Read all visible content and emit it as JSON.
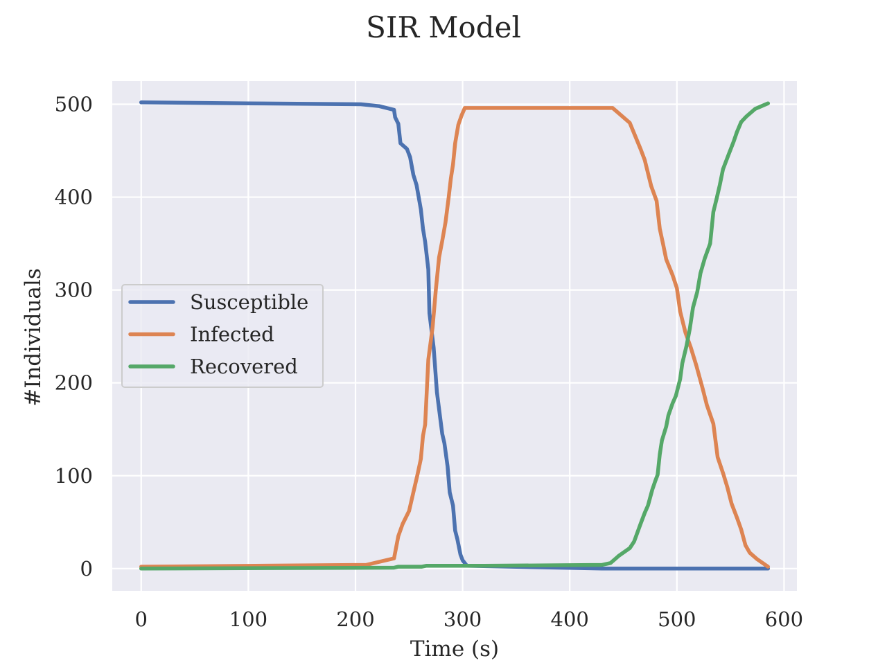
{
  "chart_data": {
    "type": "line",
    "title": "SIR Model",
    "xlabel": "Time (s)",
    "ylabel": "#Individuals",
    "xlim": [
      -27,
      612
    ],
    "ylim": [
      -24,
      525
    ],
    "xticks": [
      0,
      100,
      200,
      300,
      400,
      500,
      600
    ],
    "yticks": [
      0,
      100,
      200,
      300,
      400,
      500
    ],
    "grid": true,
    "legend_position": "center-left",
    "background": "#eaeaf2",
    "series": [
      {
        "name": "Susceptible",
        "color": "#4c72b0",
        "points": [
          [
            0,
            502
          ],
          [
            100,
            501
          ],
          [
            205,
            500
          ],
          [
            222,
            498
          ],
          [
            236,
            494
          ],
          [
            237,
            486
          ],
          [
            240,
            479
          ],
          [
            242,
            458
          ],
          [
            248,
            452
          ],
          [
            251,
            443
          ],
          [
            254,
            424
          ],
          [
            257,
            413
          ],
          [
            261,
            387
          ],
          [
            263,
            366
          ],
          [
            265,
            352
          ],
          [
            268,
            322
          ],
          [
            269,
            275
          ],
          [
            273,
            238
          ],
          [
            276,
            190
          ],
          [
            281,
            145
          ],
          [
            283,
            135
          ],
          [
            286,
            110
          ],
          [
            288,
            82
          ],
          [
            291,
            68
          ],
          [
            293,
            41
          ],
          [
            295,
            32
          ],
          [
            298,
            15
          ],
          [
            300,
            9
          ],
          [
            304,
            3
          ],
          [
            430,
            0
          ],
          [
            585,
            0
          ]
        ]
      },
      {
        "name": "Infected",
        "color": "#dd8452",
        "points": [
          [
            0,
            2
          ],
          [
            210,
            4
          ],
          [
            236,
            11
          ],
          [
            240,
            35
          ],
          [
            244,
            48
          ],
          [
            250,
            62
          ],
          [
            254,
            82
          ],
          [
            258,
            102
          ],
          [
            261,
            118
          ],
          [
            263,
            143
          ],
          [
            265,
            155
          ],
          [
            268,
            225
          ],
          [
            272,
            260
          ],
          [
            275,
            300
          ],
          [
            278,
            335
          ],
          [
            281,
            353
          ],
          [
            284,
            373
          ],
          [
            287,
            400
          ],
          [
            289,
            420
          ],
          [
            291,
            435
          ],
          [
            293,
            458
          ],
          [
            296,
            478
          ],
          [
            299,
            488
          ],
          [
            302,
            496
          ],
          [
            440,
            496
          ],
          [
            456,
            480
          ],
          [
            466,
            452
          ],
          [
            470,
            440
          ],
          [
            476,
            412
          ],
          [
            481,
            396
          ],
          [
            484,
            366
          ],
          [
            487,
            350
          ],
          [
            490,
            333
          ],
          [
            496,
            316
          ],
          [
            500,
            302
          ],
          [
            503,
            277
          ],
          [
            508,
            254
          ],
          [
            513,
            238
          ],
          [
            518,
            219
          ],
          [
            524,
            194
          ],
          [
            528,
            176
          ],
          [
            534,
            156
          ],
          [
            538,
            120
          ],
          [
            543,
            103
          ],
          [
            547,
            88
          ],
          [
            551,
            70
          ],
          [
            556,
            55
          ],
          [
            560,
            42
          ],
          [
            564,
            25
          ],
          [
            568,
            17
          ],
          [
            575,
            10
          ],
          [
            585,
            2
          ]
        ]
      },
      {
        "name": "Recovered",
        "color": "#55a868",
        "points": [
          [
            0,
            0
          ],
          [
            236,
            1
          ],
          [
            240,
            2
          ],
          [
            262,
            2
          ],
          [
            266,
            3
          ],
          [
            320,
            3
          ],
          [
            430,
            4
          ],
          [
            438,
            6
          ],
          [
            446,
            14
          ],
          [
            456,
            22
          ],
          [
            460,
            29
          ],
          [
            466,
            48
          ],
          [
            470,
            60
          ],
          [
            473,
            68
          ],
          [
            477,
            85
          ],
          [
            480,
            95
          ],
          [
            482,
            101
          ],
          [
            484,
            123
          ],
          [
            486,
            138
          ],
          [
            490,
            153
          ],
          [
            492,
            165
          ],
          [
            496,
            178
          ],
          [
            499,
            186
          ],
          [
            503,
            204
          ],
          [
            505,
            221
          ],
          [
            509,
            240
          ],
          [
            512,
            258
          ],
          [
            515,
            281
          ],
          [
            519,
            298
          ],
          [
            522,
            318
          ],
          [
            526,
            334
          ],
          [
            531,
            350
          ],
          [
            534,
            384
          ],
          [
            537,
            398
          ],
          [
            540,
            413
          ],
          [
            543,
            430
          ],
          [
            548,
            445
          ],
          [
            553,
            460
          ],
          [
            556,
            470
          ],
          [
            560,
            481
          ],
          [
            565,
            487
          ],
          [
            573,
            495
          ],
          [
            585,
            501
          ]
        ]
      }
    ]
  }
}
